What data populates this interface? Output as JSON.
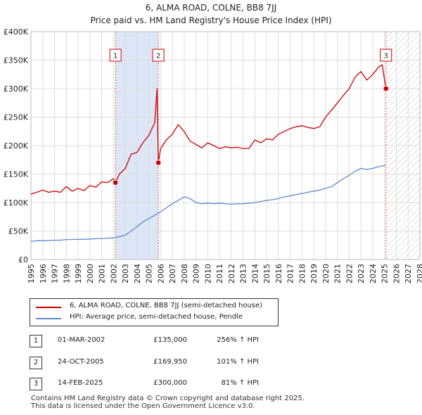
{
  "header": {
    "title": "6, ALMA ROAD, COLNE, BB8 7JJ",
    "subtitle": "Price paid vs. HM Land Registry's House Price Index (HPI)"
  },
  "chart_data": {
    "type": "line",
    "title": "6, ALMA ROAD, COLNE, BB8 7JJ",
    "subtitle": "Price paid vs. HM Land Registry's House Price Index (HPI)",
    "xlabel": "",
    "ylabel": "",
    "xlim": [
      1995,
      2028
    ],
    "ylim": [
      0,
      400000
    ],
    "x_ticks": [
      1995,
      1996,
      1997,
      1998,
      1999,
      2000,
      2001,
      2002,
      2003,
      2004,
      2005,
      2006,
      2007,
      2008,
      2009,
      2010,
      2011,
      2012,
      2013,
      2014,
      2015,
      2016,
      2017,
      2018,
      2019,
      2020,
      2021,
      2022,
      2023,
      2024,
      2025,
      2026,
      2027,
      2028
    ],
    "y_ticks": [
      {
        "value": 0,
        "label": "£0"
      },
      {
        "value": 50000,
        "label": "£50K"
      },
      {
        "value": 100000,
        "label": "£100K"
      },
      {
        "value": 150000,
        "label": "£150K"
      },
      {
        "value": 200000,
        "label": "£200K"
      },
      {
        "value": 250000,
        "label": "£250K"
      },
      {
        "value": 300000,
        "label": "£300K"
      },
      {
        "value": 350000,
        "label": "£350K"
      },
      {
        "value": 400000,
        "label": "£400K"
      }
    ],
    "grid": true,
    "legend_placement": "below chart",
    "shaded_region": {
      "from": 2002.17,
      "to": 2005.81,
      "color": "#dde6f7"
    },
    "future_hatch": {
      "from": 2025.12,
      "to": 2028
    },
    "series": [
      {
        "name": "6, ALMA ROAD, COLNE, BB8 7JJ (semi-detached house)",
        "color": "#cc0000",
        "x": [
          1995.0,
          1995.5,
          1996.0,
          1996.5,
          1997.0,
          1997.5,
          1998.0,
          1998.5,
          1999.0,
          1999.5,
          2000.0,
          2000.5,
          2001.0,
          2001.5,
          2002.0,
          2002.17,
          2002.5,
          2003.0,
          2003.5,
          2004.0,
          2004.5,
          2005.0,
          2005.5,
          2005.7,
          2005.81,
          2006.0,
          2006.5,
          2007.0,
          2007.5,
          2008.0,
          2008.5,
          2009.0,
          2009.5,
          2010.0,
          2010.5,
          2011.0,
          2011.5,
          2012.0,
          2012.5,
          2013.0,
          2013.5,
          2014.0,
          2014.5,
          2015.0,
          2015.5,
          2016.0,
          2016.5,
          2017.0,
          2017.5,
          2018.0,
          2018.5,
          2019.0,
          2019.5,
          2020.0,
          2020.5,
          2021.0,
          2021.5,
          2022.0,
          2022.5,
          2023.0,
          2023.5,
          2024.0,
          2024.5,
          2024.8,
          2025.12
        ],
        "y": [
          115000,
          118000,
          122000,
          118000,
          120000,
          118000,
          128000,
          120000,
          125000,
          121000,
          130000,
          127000,
          136000,
          135000,
          142000,
          135000,
          150000,
          160000,
          185000,
          188000,
          205000,
          218000,
          240000,
          300000,
          169950,
          195000,
          210000,
          220000,
          237000,
          225000,
          208000,
          202000,
          196000,
          205000,
          200000,
          195000,
          198000,
          196000,
          197000,
          195000,
          195000,
          210000,
          205000,
          212000,
          210000,
          220000,
          225000,
          230000,
          233000,
          235000,
          232000,
          230000,
          233000,
          250000,
          262000,
          275000,
          288000,
          300000,
          320000,
          330000,
          315000,
          325000,
          338000,
          342000,
          300000
        ]
      },
      {
        "name": "HPI: Average price, semi-detached house, Pendle",
        "color": "#5b8bc9",
        "x": [
          1995.0,
          1995.5,
          1996.0,
          1996.5,
          1997.0,
          1997.5,
          1998.0,
          1998.5,
          1999.0,
          1999.5,
          2000.0,
          2000.5,
          2001.0,
          2001.5,
          2002.0,
          2002.5,
          2003.0,
          2003.5,
          2004.0,
          2004.5,
          2005.0,
          2005.5,
          2006.0,
          2006.5,
          2007.0,
          2007.5,
          2008.0,
          2008.5,
          2009.0,
          2009.5,
          2010.0,
          2010.5,
          2011.0,
          2011.5,
          2012.0,
          2012.5,
          2013.0,
          2013.5,
          2014.0,
          2014.5,
          2015.0,
          2015.5,
          2016.0,
          2016.5,
          2017.0,
          2017.5,
          2018.0,
          2018.5,
          2019.0,
          2019.5,
          2020.0,
          2020.5,
          2021.0,
          2021.5,
          2022.0,
          2022.5,
          2023.0,
          2023.5,
          2024.0,
          2024.5,
          2025.0,
          2025.12
        ],
        "y": [
          32000,
          33000,
          33000,
          33500,
          34000,
          34000,
          35000,
          35000,
          35500,
          35500,
          36000,
          36500,
          37000,
          37500,
          38000,
          40000,
          43000,
          50000,
          58000,
          66000,
          72000,
          78000,
          84000,
          91000,
          98000,
          104000,
          110000,
          107000,
          100000,
          98000,
          99000,
          98000,
          99000,
          98000,
          97000,
          98000,
          98000,
          99000,
          100000,
          102000,
          104000,
          105000,
          107000,
          110000,
          112000,
          114000,
          116000,
          118000,
          120000,
          122000,
          125000,
          128000,
          135000,
          142000,
          148000,
          155000,
          160000,
          158000,
          160000,
          163000,
          165000,
          166000
        ]
      }
    ],
    "sales": [
      {
        "label": "1",
        "x": 2002.17,
        "y": 135000
      },
      {
        "label": "2",
        "x": 2005.81,
        "y": 169950
      },
      {
        "label": "3",
        "x": 2025.12,
        "y": 300000
      }
    ]
  },
  "legend": {
    "items": [
      {
        "label": "6, ALMA ROAD, COLNE, BB8 7JJ (semi-detached house)",
        "color": "#cc0000"
      },
      {
        "label": "HPI: Average price, semi-detached house, Pendle",
        "color": "#5b8bc9"
      }
    ]
  },
  "transactions": [
    {
      "num": "1",
      "date": "01-MAR-2002",
      "price": "£135,000",
      "hpi": "256% ↑ HPI"
    },
    {
      "num": "2",
      "date": "24-OCT-2005",
      "price": "£169,950",
      "hpi": "101% ↑ HPI"
    },
    {
      "num": "3",
      "date": "14-FEB-2025",
      "price": "£300,000",
      "hpi": "81% ↑ HPI"
    }
  ],
  "footer": {
    "line1": "Contains HM Land Registry data © Crown copyright and database right 2025.",
    "line2": "This data is licensed under the Open Government Licence v3.0."
  }
}
